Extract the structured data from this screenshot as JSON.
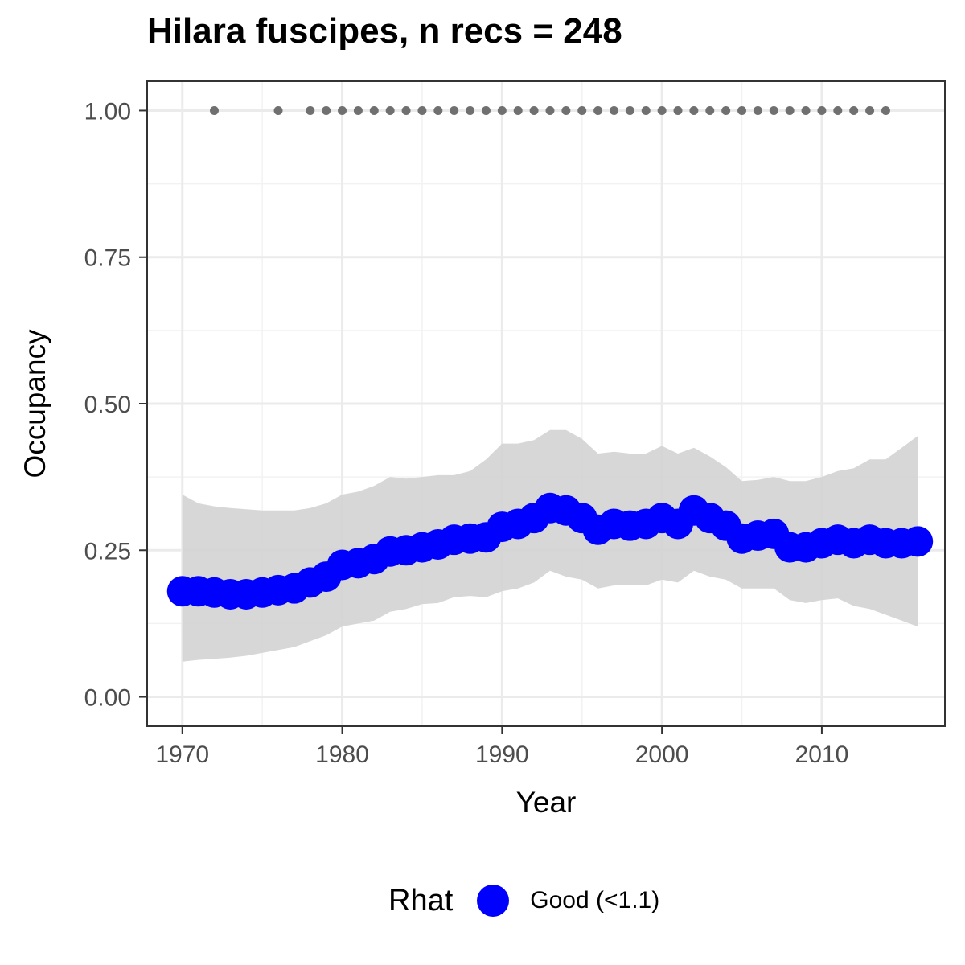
{
  "chart_data": {
    "type": "line",
    "title": "Hilara fuscipes, n recs = 248",
    "xlabel": "Year",
    "ylabel": "Occupancy",
    "xlim": [
      1967.8,
      2017.7
    ],
    "ylim": [
      -0.05,
      1.05
    ],
    "xticks": [
      1970,
      1980,
      1990,
      2000,
      2010
    ],
    "xtick_labels": [
      "1970",
      "1980",
      "1990",
      "2000",
      "2010"
    ],
    "yticks": [
      0,
      0.25,
      0.5,
      0.75,
      1.0
    ],
    "ytick_labels": [
      "0.00",
      "0.25",
      "0.50",
      "0.75",
      "1.00"
    ],
    "grid": true,
    "legend": {
      "title": "Rhat",
      "placement": "bottom",
      "entries": [
        {
          "label": "Good (<1.1)",
          "color": "#0000ff"
        }
      ]
    },
    "series": [
      {
        "name": "Good (<1.1)",
        "color": "#0000ff",
        "x": [
          1970,
          1971,
          1972,
          1973,
          1974,
          1975,
          1976,
          1977,
          1978,
          1979,
          1980,
          1981,
          1982,
          1983,
          1984,
          1985,
          1986,
          1987,
          1988,
          1989,
          1990,
          1991,
          1992,
          1993,
          1994,
          1995,
          1996,
          1997,
          1998,
          1999,
          2000,
          2001,
          2002,
          2003,
          2004,
          2005,
          2006,
          2007,
          2008,
          2009,
          2010,
          2011,
          2012,
          2013,
          2014,
          2015,
          2016
        ],
        "y": [
          0.18,
          0.18,
          0.178,
          0.175,
          0.175,
          0.178,
          0.182,
          0.185,
          0.195,
          0.205,
          0.225,
          0.228,
          0.235,
          0.248,
          0.25,
          0.255,
          0.26,
          0.268,
          0.27,
          0.272,
          0.29,
          0.295,
          0.305,
          0.322,
          0.318,
          0.305,
          0.285,
          0.295,
          0.292,
          0.295,
          0.305,
          0.295,
          0.318,
          0.305,
          0.292,
          0.27,
          0.275,
          0.278,
          0.255,
          0.255,
          0.262,
          0.268,
          0.262,
          0.268,
          0.262,
          0.262,
          0.265
        ],
        "lower": [
          0.06,
          0.063,
          0.065,
          0.067,
          0.07,
          0.075,
          0.08,
          0.085,
          0.095,
          0.105,
          0.12,
          0.125,
          0.13,
          0.145,
          0.15,
          0.158,
          0.16,
          0.17,
          0.172,
          0.17,
          0.18,
          0.185,
          0.195,
          0.215,
          0.205,
          0.2,
          0.185,
          0.19,
          0.19,
          0.19,
          0.2,
          0.195,
          0.215,
          0.205,
          0.2,
          0.185,
          0.185,
          0.185,
          0.165,
          0.16,
          0.165,
          0.168,
          0.155,
          0.15,
          0.14,
          0.13,
          0.12
        ],
        "upper": [
          0.345,
          0.33,
          0.325,
          0.322,
          0.32,
          0.318,
          0.318,
          0.318,
          0.322,
          0.33,
          0.345,
          0.35,
          0.36,
          0.375,
          0.372,
          0.375,
          0.378,
          0.378,
          0.385,
          0.405,
          0.432,
          0.432,
          0.438,
          0.455,
          0.455,
          0.44,
          0.415,
          0.418,
          0.415,
          0.415,
          0.428,
          0.415,
          0.425,
          0.41,
          0.392,
          0.368,
          0.37,
          0.375,
          0.368,
          0.368,
          0.375,
          0.385,
          0.39,
          0.405,
          0.405,
          0.425,
          0.445
        ]
      }
    ],
    "records": {
      "name": "records",
      "color": "#707070",
      "y": 1.0,
      "x": [
        1972,
        1976,
        1978,
        1979,
        1980,
        1981,
        1982,
        1983,
        1984,
        1985,
        1986,
        1987,
        1988,
        1989,
        1990,
        1991,
        1992,
        1993,
        1994,
        1995,
        1996,
        1997,
        1998,
        1999,
        2000,
        2001,
        2002,
        2003,
        2004,
        2005,
        2006,
        2007,
        2008,
        2009,
        2010,
        2011,
        2012,
        2013,
        2014
      ]
    },
    "ribbon_color": "#d3d3d3"
  }
}
